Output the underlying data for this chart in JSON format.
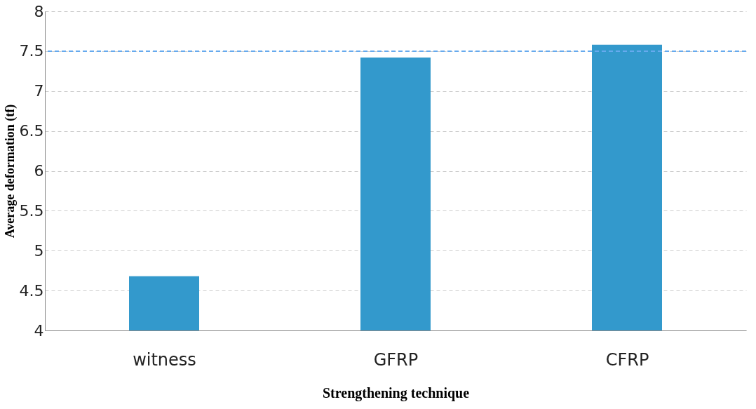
{
  "chart_data": {
    "type": "bar",
    "xlabel": "Strengthening technique",
    "ylabel": "Average deformation (tf)",
    "categories": [
      "witness",
      "GFRP",
      "CFRP"
    ],
    "values": [
      4.68,
      7.42,
      7.58
    ],
    "color": "#3399cc",
    "ylim": [
      4,
      8
    ],
    "yticks": [
      4,
      4.5,
      5,
      5.5,
      6,
      6.5,
      7,
      7.5,
      8
    ],
    "grid": "y",
    "ref_lines": [
      {
        "axis": "y",
        "value": 7.5,
        "color": "#66aaee",
        "line_style": "dashed"
      }
    ]
  }
}
